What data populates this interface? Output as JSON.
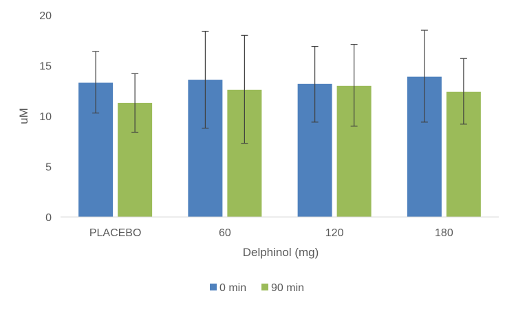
{
  "chart_data": {
    "type": "bar",
    "categories": [
      "PLACEBO",
      "60",
      "120",
      "180"
    ],
    "xlabel": "Delphinol (mg)",
    "ylabel": "uM",
    "ylim": [
      0,
      20
    ],
    "yticks": [
      0,
      5,
      10,
      15,
      20
    ],
    "grid": false,
    "legend_position": "bottom",
    "series": [
      {
        "name": "0 min",
        "color": "#4f81bd",
        "values": [
          13.3,
          13.6,
          13.2,
          13.9
        ],
        "error_low": [
          10.3,
          8.8,
          9.4,
          9.4
        ],
        "error_high": [
          16.4,
          18.4,
          16.9,
          18.5
        ]
      },
      {
        "name": "90 min",
        "color": "#9bbb59",
        "values": [
          11.3,
          12.6,
          13.0,
          12.4
        ],
        "error_low": [
          8.4,
          7.3,
          9.0,
          9.2
        ],
        "error_high": [
          14.2,
          18.0,
          17.1,
          15.7
        ]
      }
    ]
  }
}
